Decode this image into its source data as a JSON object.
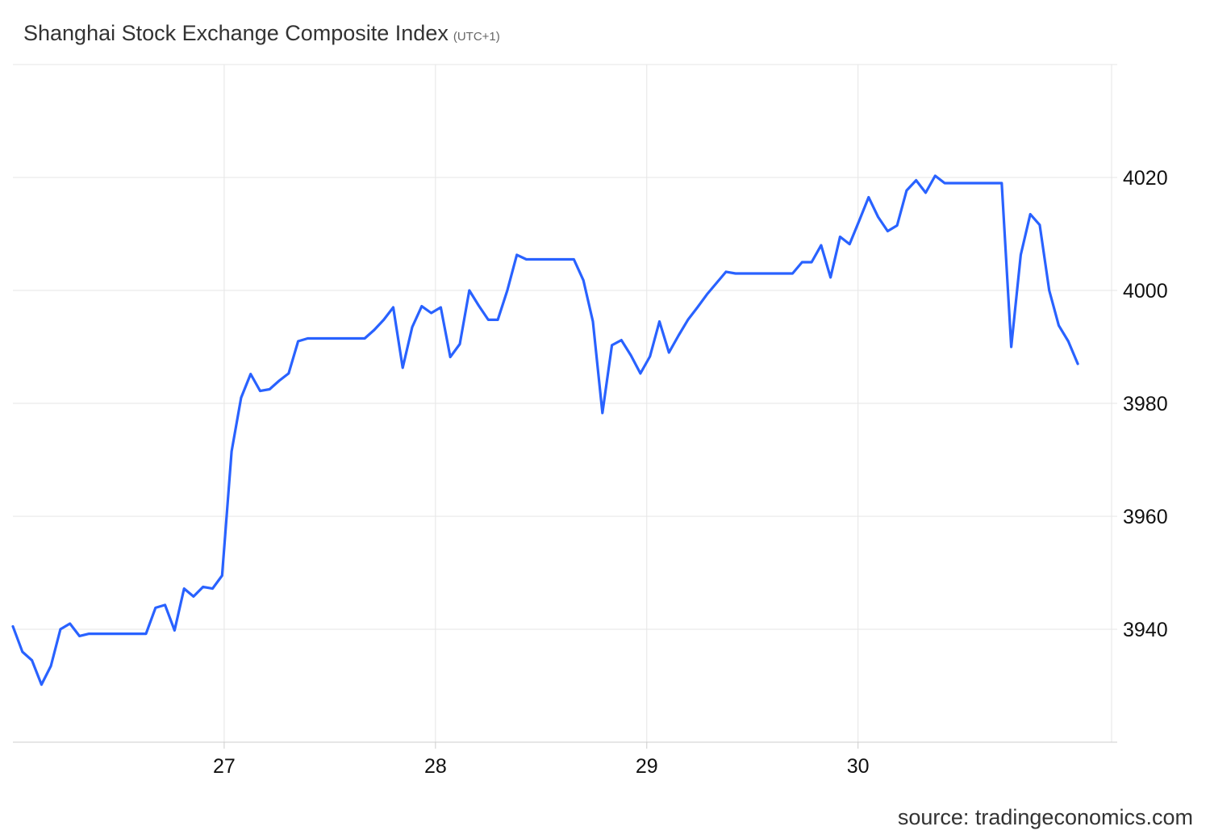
{
  "title": "Shanghai Stock Exchange Composite Index",
  "timezone": "(UTC+1)",
  "source": "source: tradingeconomics.com",
  "chart_data": {
    "type": "line",
    "title": "Shanghai Stock Exchange Composite Index",
    "subtitle": "(UTC+1)",
    "xlabel": "",
    "ylabel": "",
    "x_tick_labels": [
      "27",
      "28",
      "29",
      "30"
    ],
    "x_ticks": [
      27,
      28,
      29,
      30
    ],
    "xlim": [
      26.0,
      31.2
    ],
    "y_ticks": [
      3940,
      3960,
      3980,
      4000,
      4020
    ],
    "ylim": [
      3920,
      4040
    ],
    "y_axis_side": "right",
    "grid": true,
    "line_color": "#2962ff",
    "series": [
      {
        "x": [
          26.0,
          26.045,
          26.09,
          26.135,
          26.18,
          26.225,
          26.27,
          26.315,
          26.36,
          26.405,
          26.45,
          26.495,
          26.54,
          26.585,
          26.63,
          26.675,
          26.72,
          26.765,
          26.81,
          26.855,
          26.9,
          26.945,
          26.99,
          27.035,
          27.08,
          27.125,
          27.17,
          27.215,
          27.26,
          27.305,
          27.35,
          27.395,
          27.44,
          27.485,
          27.53,
          27.575,
          27.62,
          27.665,
          27.71,
          27.755,
          27.8,
          27.845,
          27.89,
          27.935,
          27.98,
          28.025,
          28.07,
          28.115,
          28.16,
          28.205,
          28.25,
          28.295,
          28.34,
          28.385,
          28.43,
          28.475,
          28.52,
          28.565,
          28.61,
          28.655,
          28.7,
          28.745,
          28.79,
          28.835,
          28.88,
          28.925,
          28.97,
          29.015,
          29.06,
          29.105,
          29.15,
          29.195,
          29.24,
          29.285,
          29.33,
          29.375,
          29.42,
          29.465,
          29.51,
          29.555,
          29.6,
          29.645,
          29.69,
          29.735,
          29.78,
          29.825,
          29.87,
          29.915,
          29.96,
          30.005,
          30.05,
          30.095,
          30.14,
          30.185,
          30.23,
          30.275,
          30.32,
          30.365,
          30.41,
          30.455,
          30.5,
          30.545,
          30.59,
          30.635,
          30.68,
          30.725,
          30.77,
          30.815,
          30.86,
          30.905,
          30.95,
          30.995,
          31.04
        ],
        "y": [
          3940.5,
          3936,
          3934.5,
          3930.2,
          3933.5,
          3940,
          3941,
          3938.8,
          3939.2,
          3939.2,
          3939.2,
          3939.2,
          3939.2,
          3939.2,
          3939.2,
          3943.8,
          3944.3,
          3939.8,
          3947.2,
          3945.8,
          3947.5,
          3947.2,
          3949.5,
          3971.5,
          3981,
          3985.2,
          3982.2,
          3982.5,
          3984,
          3985.3,
          3991,
          3991.5,
          3991.5,
          3991.5,
          3991.5,
          3991.5,
          3991.5,
          3991.5,
          3993,
          3994.8,
          3997,
          3986.3,
          3993.5,
          3997.2,
          3996,
          3997,
          3988.2,
          3990.5,
          4000,
          3997.3,
          3994.8,
          3994.8,
          4000,
          4006.3,
          4005.5,
          4005.5,
          4005.5,
          4005.5,
          4005.5,
          4005.5,
          4001.8,
          3994.5,
          3978.3,
          3990.3,
          3991.2,
          3988.5,
          3985.3,
          3988.3,
          3994.5,
          3989,
          3992,
          3994.8,
          3997,
          3999.3,
          4001.3,
          4003.3,
          4003,
          4003,
          4003,
          4003,
          4003,
          4003,
          4003,
          4005,
          4005,
          4008,
          4002.3,
          4009.5,
          4008.2,
          4012.3,
          4016.5,
          4013,
          4010.5,
          4011.5,
          4017.7,
          4019.5,
          4017.3,
          4020.3,
          4019,
          4019,
          4019,
          4019,
          4019,
          4019,
          4019,
          3990,
          4006.3,
          4013.5,
          4011.6,
          4000,
          3993.8,
          3991,
          3987
        ]
      }
    ]
  }
}
